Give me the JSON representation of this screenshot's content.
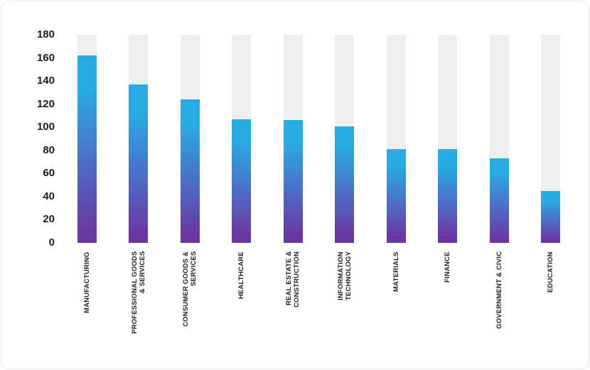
{
  "chart_data": {
    "type": "bar",
    "title": "",
    "xlabel": "",
    "ylabel": "",
    "categories": [
      "MANUFACTURING",
      "PROFESSIONAL GOODS\n& SERVICES",
      "CONSUMER GOODS &\nSERVICES",
      "HEALTHCARE",
      "REAL ESTATE &\nCONSTRUCTION",
      "INFORMATION\nTECHNOLOGY",
      "MATERIALS",
      "FINANCE",
      "GOVERNMENT & CIVIC",
      "EDUCATION"
    ],
    "values": [
      162,
      137,
      124,
      107,
      106,
      101,
      81,
      81,
      73,
      45
    ],
    "ylim": [
      0,
      180
    ],
    "yticks": [
      0,
      20,
      40,
      60,
      80,
      100,
      120,
      140,
      160,
      180
    ],
    "grid": false,
    "legend_position": "none",
    "colors": {
      "bar_gradient_top": "#29abe2",
      "bar_gradient_mid": "#4a71c9",
      "bar_gradient_bottom": "#6b37a3",
      "track": "#f0efef",
      "axis_text": "#1c1c1c",
      "card_border": "#e7e5e5"
    }
  }
}
